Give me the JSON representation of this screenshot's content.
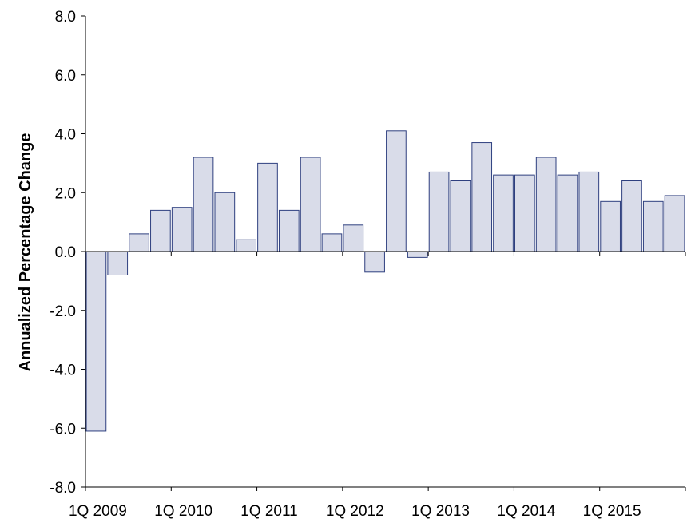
{
  "chart_data": {
    "type": "bar",
    "title": "",
    "xlabel": "",
    "ylabel": "Annualized Percentage Change",
    "ylim": [
      -8.0,
      8.0
    ],
    "y_ticks": [
      "8.0",
      "6.0",
      "4.0",
      "2.0",
      "0.0",
      "-2.0",
      "-4.0",
      "-6.0",
      "-8.0"
    ],
    "x_tick_labels": [
      "1Q 2009",
      "1Q 2010",
      "1Q 2011",
      "1Q 2012",
      "1Q 2013",
      "1Q 2014",
      "1Q 2015"
    ],
    "categories": [
      "1Q 2009",
      "2Q 2009",
      "3Q 2009",
      "4Q 2009",
      "1Q 2010",
      "2Q 2010",
      "3Q 2010",
      "4Q 2010",
      "1Q 2011",
      "2Q 2011",
      "3Q 2011",
      "4Q 2011",
      "1Q 2012",
      "2Q 2012",
      "3Q 2012",
      "4Q 2012",
      "1Q 2013",
      "2Q 2013",
      "3Q 2013",
      "4Q 2013",
      "1Q 2014",
      "2Q 2014",
      "3Q 2014",
      "4Q 2014",
      "1Q 2015",
      "2Q 2015",
      "3Q 2015",
      "4Q 2015"
    ],
    "values": [
      -6.1,
      -0.8,
      0.6,
      1.4,
      1.5,
      3.2,
      2.0,
      0.4,
      3.0,
      1.4,
      3.2,
      0.6,
      0.9,
      -0.7,
      4.1,
      -0.2,
      2.7,
      2.4,
      3.7,
      2.6,
      2.6,
      3.2,
      2.6,
      2.7,
      1.7,
      2.4,
      1.7,
      1.9
    ],
    "grid": false,
    "legend": "none",
    "colors": {
      "bar_fill": "#d9dce9",
      "bar_stroke": "#2e3f7f",
      "axis": "#000000"
    }
  }
}
